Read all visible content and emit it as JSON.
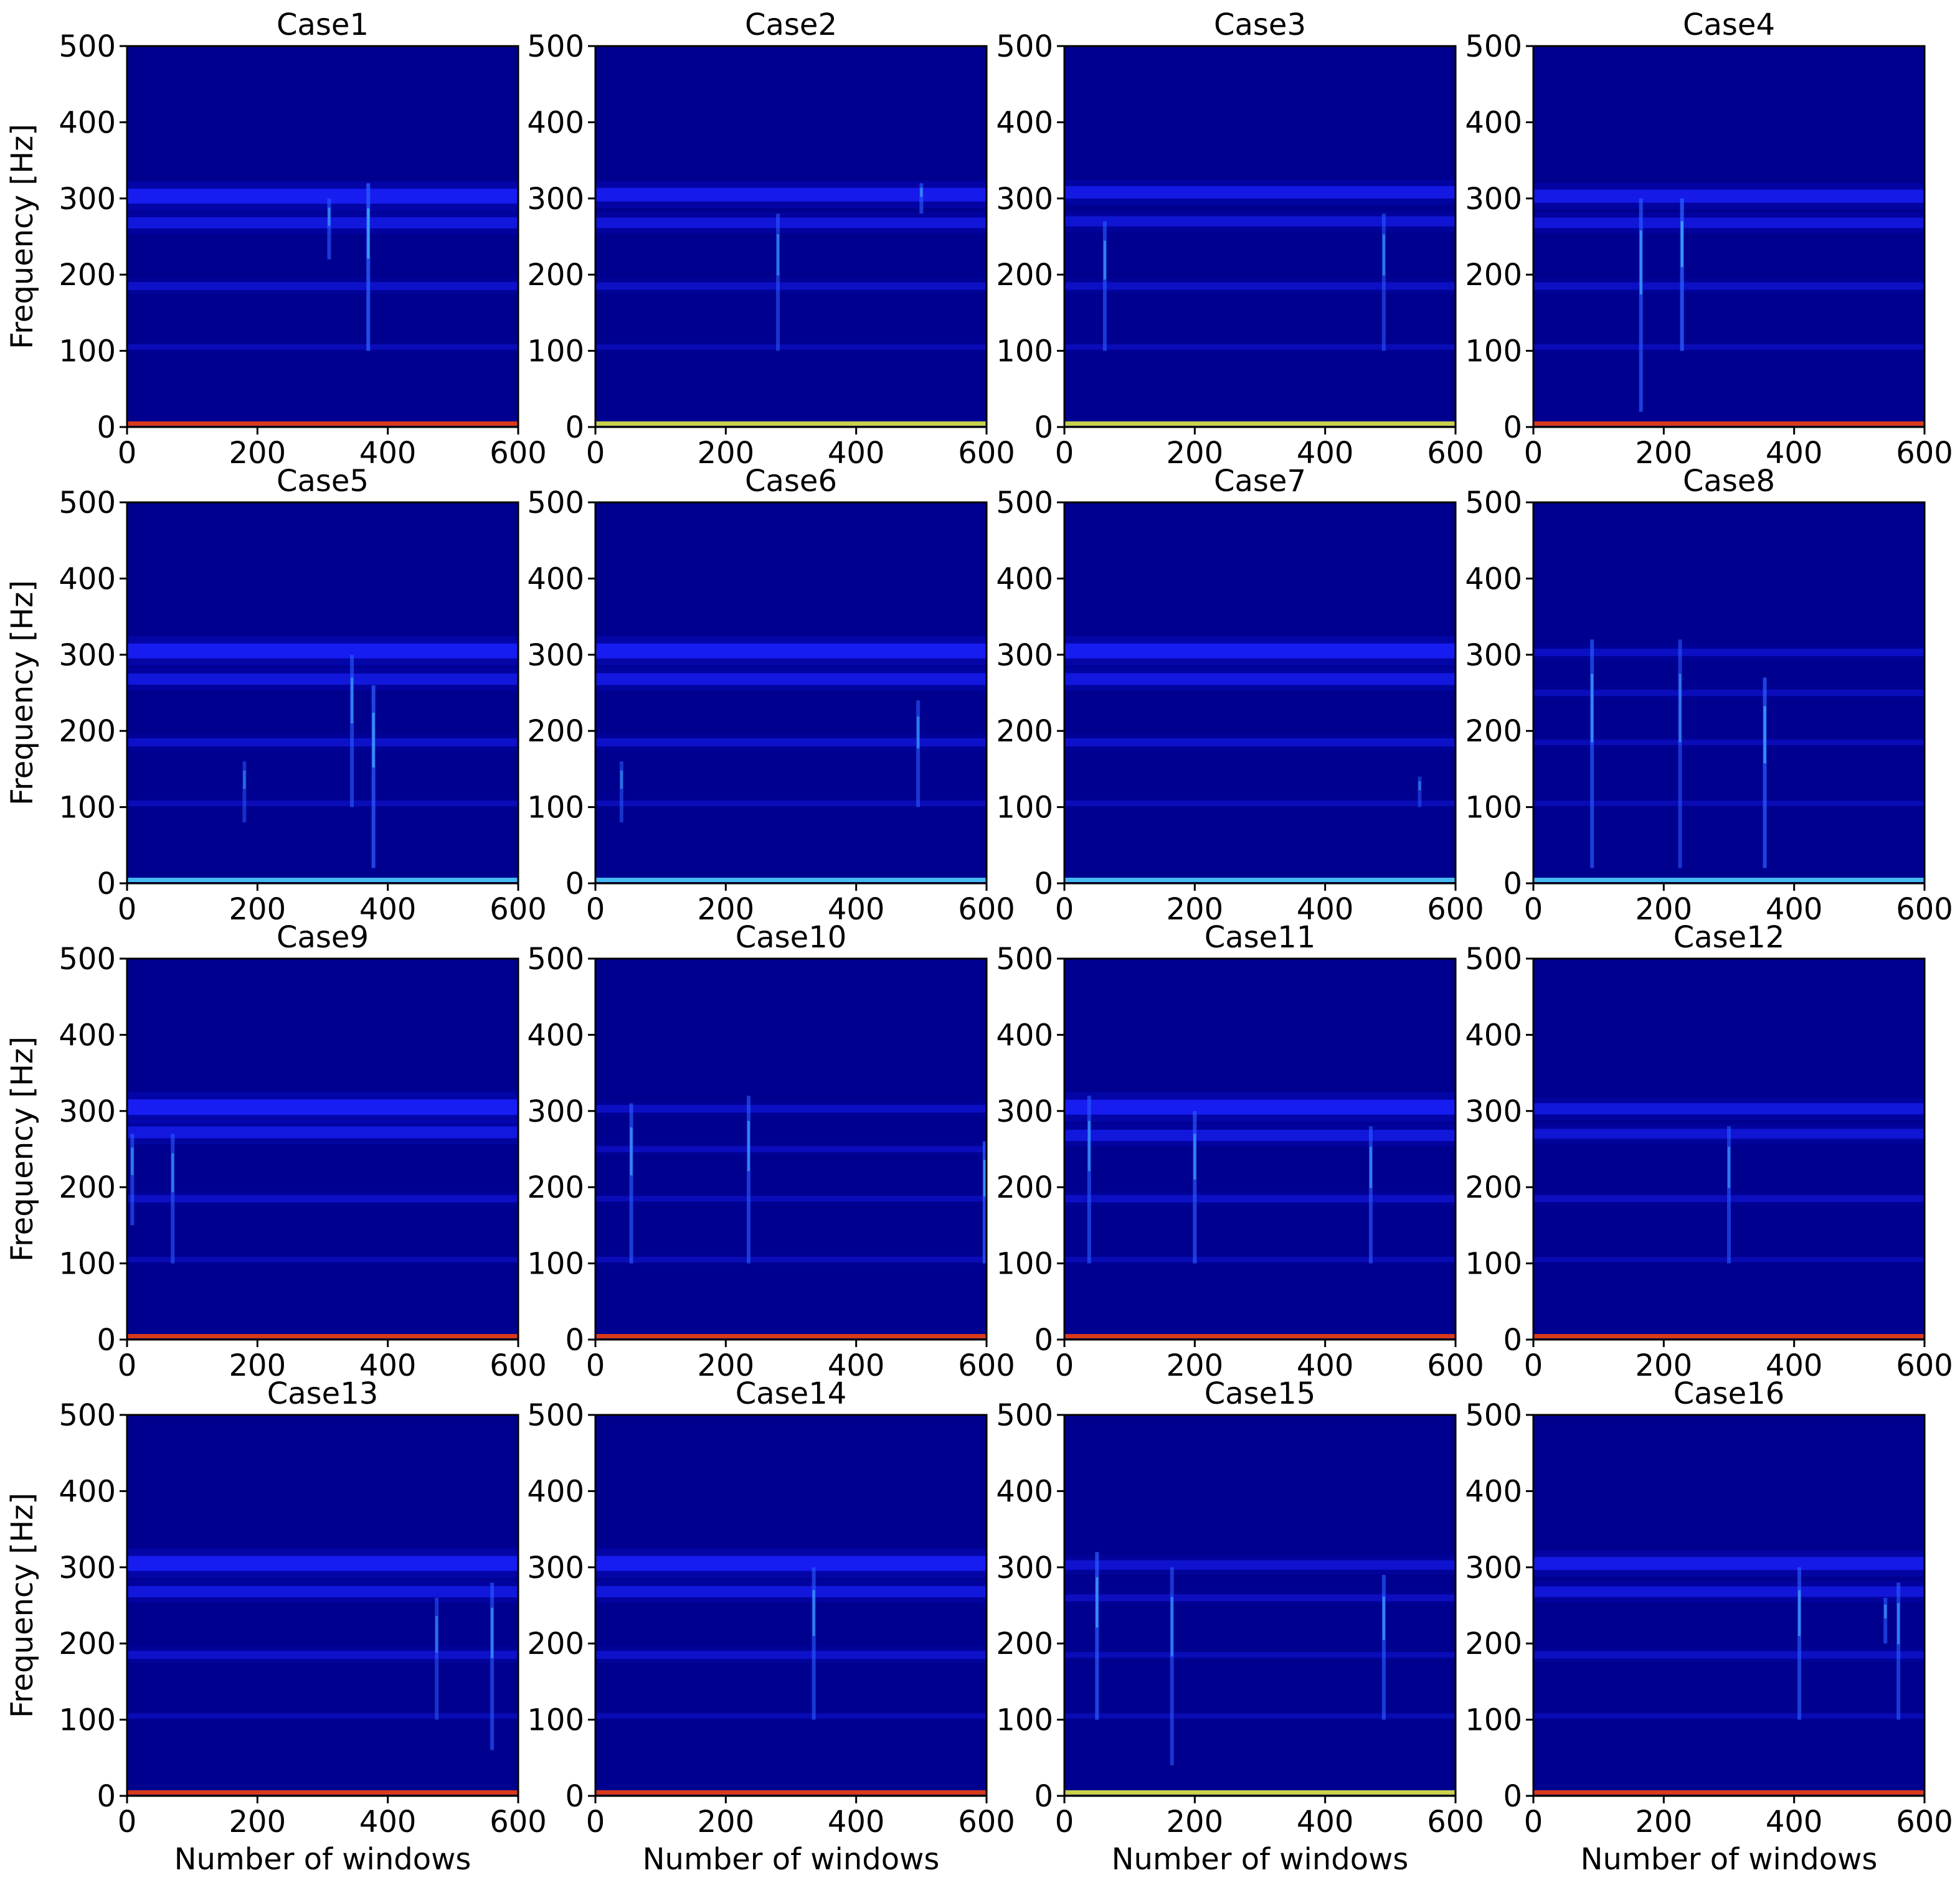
{
  "figure": {
    "xlabel": "Number of windows",
    "ylabel": "Frequency [Hz]"
  },
  "colors": {
    "background": "#00008f",
    "band": "#1c22ff",
    "band_soft": "#0a10d8",
    "line": "#2a5cff",
    "bright": "#3fb2ff",
    "zero_red": "#d83a1a",
    "zero_yellow": "#c8d24a",
    "zero_cyan": "#45b8f0"
  },
  "chart_data": [
    {
      "type": "heatmap",
      "title": "Case1",
      "xlim": [
        0,
        600
      ],
      "ylim": [
        0,
        500
      ],
      "xticks": [
        0,
        200,
        400,
        600
      ],
      "yticks": [
        0,
        100,
        200,
        300,
        400,
        500
      ],
      "bands_hz": [
        {
          "f": 303,
          "s": 0.9
        },
        {
          "f": 268,
          "s": 0.6
        },
        {
          "f": 185,
          "s": 0.35
        },
        {
          "f": 105,
          "s": 0.15
        }
      ],
      "transients": [
        {
          "x": 310,
          "f0": 220,
          "f1": 300,
          "s": 0.5
        },
        {
          "x": 370,
          "f0": 100,
          "f1": 320,
          "s": 0.8
        }
      ],
      "zero_line": "red"
    },
    {
      "type": "heatmap",
      "title": "Case2",
      "xlim": [
        0,
        600
      ],
      "ylim": [
        0,
        500
      ],
      "xticks": [
        0,
        200,
        400,
        600
      ],
      "yticks": [
        0,
        100,
        200,
        300,
        400,
        500
      ],
      "bands_hz": [
        {
          "f": 305,
          "s": 0.8
        },
        {
          "f": 268,
          "s": 0.55
        },
        {
          "f": 185,
          "s": 0.3
        },
        {
          "f": 105,
          "s": 0.12
        }
      ],
      "transients": [
        {
          "x": 280,
          "f0": 100,
          "f1": 280,
          "s": 0.4
        },
        {
          "x": 500,
          "f0": 280,
          "f1": 320,
          "s": 0.5
        }
      ],
      "zero_line": "yellow"
    },
    {
      "type": "heatmap",
      "title": "Case3",
      "xlim": [
        0,
        600
      ],
      "ylim": [
        0,
        500
      ],
      "xticks": [
        0,
        200,
        400,
        600
      ],
      "yticks": [
        0,
        100,
        200,
        300,
        400,
        500
      ],
      "bands_hz": [
        {
          "f": 308,
          "s": 0.7
        },
        {
          "f": 270,
          "s": 0.5
        },
        {
          "f": 185,
          "s": 0.3
        },
        {
          "f": 105,
          "s": 0.15
        }
      ],
      "transients": [
        {
          "x": 62,
          "f0": 100,
          "f1": 270,
          "s": 0.5
        },
        {
          "x": 490,
          "f0": 100,
          "f1": 280,
          "s": 0.4
        }
      ],
      "zero_line": "yellow"
    },
    {
      "type": "heatmap",
      "title": "Case4",
      "xlim": [
        0,
        600
      ],
      "ylim": [
        0,
        500
      ],
      "xticks": [
        0,
        200,
        400,
        600
      ],
      "yticks": [
        0,
        100,
        200,
        300,
        400,
        500
      ],
      "bands_hz": [
        {
          "f": 303,
          "s": 0.75
        },
        {
          "f": 268,
          "s": 0.55
        },
        {
          "f": 185,
          "s": 0.3
        },
        {
          "f": 105,
          "s": 0.15
        }
      ],
      "transients": [
        {
          "x": 165,
          "f0": 20,
          "f1": 300,
          "s": 0.6
        },
        {
          "x": 228,
          "f0": 100,
          "f1": 300,
          "s": 0.8
        }
      ],
      "zero_line": "red"
    },
    {
      "type": "heatmap",
      "title": "Case5",
      "xlim": [
        0,
        600
      ],
      "ylim": [
        0,
        500
      ],
      "xticks": [
        0,
        200,
        400,
        600
      ],
      "yticks": [
        0,
        100,
        200,
        300,
        400,
        500
      ],
      "bands_hz": [
        {
          "f": 305,
          "s": 0.9
        },
        {
          "f": 268,
          "s": 0.6
        },
        {
          "f": 185,
          "s": 0.35
        },
        {
          "f": 105,
          "s": 0.15
        }
      ],
      "transients": [
        {
          "x": 180,
          "f0": 80,
          "f1": 160,
          "s": 0.3
        },
        {
          "x": 345,
          "f0": 100,
          "f1": 300,
          "s": 0.5
        },
        {
          "x": 378,
          "f0": 20,
          "f1": 260,
          "s": 0.7
        }
      ],
      "zero_line": "cyan"
    },
    {
      "type": "heatmap",
      "title": "Case6",
      "xlim": [
        0,
        600
      ],
      "ylim": [
        0,
        500
      ],
      "xticks": [
        0,
        200,
        400,
        600
      ],
      "yticks": [
        0,
        100,
        200,
        300,
        400,
        500
      ],
      "bands_hz": [
        {
          "f": 305,
          "s": 0.9
        },
        {
          "f": 268,
          "s": 0.65
        },
        {
          "f": 185,
          "s": 0.35
        },
        {
          "f": 105,
          "s": 0.15
        }
      ],
      "transients": [
        {
          "x": 40,
          "f0": 80,
          "f1": 160,
          "s": 0.35
        },
        {
          "x": 495,
          "f0": 100,
          "f1": 240,
          "s": 0.45
        }
      ],
      "zero_line": "cyan"
    },
    {
      "type": "heatmap",
      "title": "Case7",
      "xlim": [
        0,
        600
      ],
      "ylim": [
        0,
        500
      ],
      "xticks": [
        0,
        200,
        400,
        600
      ],
      "yticks": [
        0,
        100,
        200,
        300,
        400,
        500
      ],
      "bands_hz": [
        {
          "f": 305,
          "s": 0.9
        },
        {
          "f": 268,
          "s": 0.65
        },
        {
          "f": 185,
          "s": 0.35
        },
        {
          "f": 105,
          "s": 0.15
        }
      ],
      "transients": [
        {
          "x": 545,
          "f0": 100,
          "f1": 140,
          "s": 0.3
        }
      ],
      "zero_line": "cyan"
    },
    {
      "type": "heatmap",
      "title": "Case8",
      "xlim": [
        0,
        600
      ],
      "ylim": [
        0,
        500
      ],
      "xticks": [
        0,
        200,
        400,
        600
      ],
      "yticks": [
        0,
        100,
        200,
        300,
        400,
        500
      ],
      "bands_hz": [
        {
          "f": 303,
          "s": 0.3
        },
        {
          "f": 250,
          "s": 0.2
        },
        {
          "f": 185,
          "s": 0.15
        },
        {
          "f": 105,
          "s": 0.12
        }
      ],
      "transients": [
        {
          "x": 90,
          "f0": 20,
          "f1": 320,
          "s": 0.6
        },
        {
          "x": 225,
          "f0": 20,
          "f1": 320,
          "s": 0.4
        },
        {
          "x": 355,
          "f0": 20,
          "f1": 270,
          "s": 0.7
        }
      ],
      "zero_line": "cyan"
    },
    {
      "type": "heatmap",
      "title": "Case9",
      "xlim": [
        0,
        600
      ],
      "ylim": [
        0,
        500
      ],
      "xticks": [
        0,
        200,
        400,
        600
      ],
      "yticks": [
        0,
        100,
        200,
        300,
        400,
        500
      ],
      "bands_hz": [
        {
          "f": 305,
          "s": 0.95
        },
        {
          "f": 272,
          "s": 0.65
        },
        {
          "f": 185,
          "s": 0.3
        },
        {
          "f": 105,
          "s": 0.12
        }
      ],
      "transients": [
        {
          "x": 8,
          "f0": 150,
          "f1": 270,
          "s": 0.5
        },
        {
          "x": 70,
          "f0": 100,
          "f1": 270,
          "s": 0.45
        }
      ],
      "zero_line": "red"
    },
    {
      "type": "heatmap",
      "title": "Case10",
      "xlim": [
        0,
        600
      ],
      "ylim": [
        0,
        500
      ],
      "xticks": [
        0,
        200,
        400,
        600
      ],
      "yticks": [
        0,
        100,
        200,
        300,
        400,
        500
      ],
      "bands_hz": [
        {
          "f": 303,
          "s": 0.3
        },
        {
          "f": 250,
          "s": 0.2
        },
        {
          "f": 185,
          "s": 0.15
        },
        {
          "f": 105,
          "s": 0.15
        }
      ],
      "transients": [
        {
          "x": 55,
          "f0": 100,
          "f1": 310,
          "s": 0.55
        },
        {
          "x": 235,
          "f0": 100,
          "f1": 320,
          "s": 0.5
        },
        {
          "x": 597,
          "f0": 100,
          "f1": 260,
          "s": 0.7
        }
      ],
      "zero_line": "red"
    },
    {
      "type": "heatmap",
      "title": "Case11",
      "xlim": [
        0,
        600
      ],
      "ylim": [
        0,
        500
      ],
      "xticks": [
        0,
        200,
        400,
        600
      ],
      "yticks": [
        0,
        100,
        200,
        300,
        400,
        500
      ],
      "bands_hz": [
        {
          "f": 305,
          "s": 0.9
        },
        {
          "f": 268,
          "s": 0.6
        },
        {
          "f": 185,
          "s": 0.3
        },
        {
          "f": 105,
          "s": 0.12
        }
      ],
      "transients": [
        {
          "x": 38,
          "f0": 100,
          "f1": 320,
          "s": 0.5
        },
        {
          "x": 200,
          "f0": 100,
          "f1": 300,
          "s": 0.55
        },
        {
          "x": 470,
          "f0": 100,
          "f1": 280,
          "s": 0.5
        }
      ],
      "zero_line": "red"
    },
    {
      "type": "heatmap",
      "title": "Case12",
      "xlim": [
        0,
        600
      ],
      "ylim": [
        0,
        500
      ],
      "xticks": [
        0,
        200,
        400,
        600
      ],
      "yticks": [
        0,
        100,
        200,
        300,
        400,
        500
      ],
      "bands_hz": [
        {
          "f": 303,
          "s": 0.6
        },
        {
          "f": 270,
          "s": 0.5
        },
        {
          "f": 185,
          "s": 0.25
        },
        {
          "f": 105,
          "s": 0.1
        }
      ],
      "transients": [
        {
          "x": 300,
          "f0": 100,
          "f1": 280,
          "s": 0.45
        }
      ],
      "zero_line": "red"
    },
    {
      "type": "heatmap",
      "title": "Case13",
      "xlim": [
        0,
        600
      ],
      "ylim": [
        0,
        500
      ],
      "xticks": [
        0,
        200,
        400,
        600
      ],
      "yticks": [
        0,
        100,
        200,
        300,
        400,
        500
      ],
      "bands_hz": [
        {
          "f": 305,
          "s": 0.9
        },
        {
          "f": 268,
          "s": 0.6
        },
        {
          "f": 185,
          "s": 0.35
        },
        {
          "f": 105,
          "s": 0.12
        }
      ],
      "transients": [
        {
          "x": 475,
          "f0": 100,
          "f1": 260,
          "s": 0.35
        },
        {
          "x": 560,
          "f0": 60,
          "f1": 280,
          "s": 0.5
        }
      ],
      "zero_line": "red"
    },
    {
      "type": "heatmap",
      "title": "Case14",
      "xlim": [
        0,
        600
      ],
      "ylim": [
        0,
        500
      ],
      "xticks": [
        0,
        200,
        400,
        600
      ],
      "yticks": [
        0,
        100,
        200,
        300,
        400,
        500
      ],
      "bands_hz": [
        {
          "f": 305,
          "s": 0.9
        },
        {
          "f": 268,
          "s": 0.6
        },
        {
          "f": 185,
          "s": 0.35
        },
        {
          "f": 105,
          "s": 0.12
        }
      ],
      "transients": [
        {
          "x": 335,
          "f0": 100,
          "f1": 300,
          "s": 0.5
        }
      ],
      "zero_line": "red"
    },
    {
      "type": "heatmap",
      "title": "Case15",
      "xlim": [
        0,
        600
      ],
      "ylim": [
        0,
        500
      ],
      "xticks": [
        0,
        200,
        400,
        600
      ],
      "yticks": [
        0,
        100,
        200,
        300,
        400,
        500
      ],
      "bands_hz": [
        {
          "f": 303,
          "s": 0.45
        },
        {
          "f": 260,
          "s": 0.25
        },
        {
          "f": 185,
          "s": 0.15
        },
        {
          "f": 105,
          "s": 0.1
        }
      ],
      "transients": [
        {
          "x": 50,
          "f0": 100,
          "f1": 320,
          "s": 0.65
        },
        {
          "x": 165,
          "f0": 40,
          "f1": 300,
          "s": 0.45
        },
        {
          "x": 490,
          "f0": 100,
          "f1": 290,
          "s": 0.55
        }
      ],
      "zero_line": "yellow"
    },
    {
      "type": "heatmap",
      "title": "Case16",
      "xlim": [
        0,
        600
      ],
      "ylim": [
        0,
        500
      ],
      "xticks": [
        0,
        200,
        400,
        600
      ],
      "yticks": [
        0,
        100,
        200,
        300,
        400,
        500
      ],
      "bands_hz": [
        {
          "f": 305,
          "s": 0.75
        },
        {
          "f": 268,
          "s": 0.55
        },
        {
          "f": 185,
          "s": 0.3
        },
        {
          "f": 105,
          "s": 0.12
        }
      ],
      "transients": [
        {
          "x": 408,
          "f0": 100,
          "f1": 300,
          "s": 0.55
        },
        {
          "x": 540,
          "f0": 200,
          "f1": 260,
          "s": 0.5
        },
        {
          "x": 560,
          "f0": 100,
          "f1": 280,
          "s": 0.5
        }
      ],
      "zero_line": "red"
    }
  ]
}
